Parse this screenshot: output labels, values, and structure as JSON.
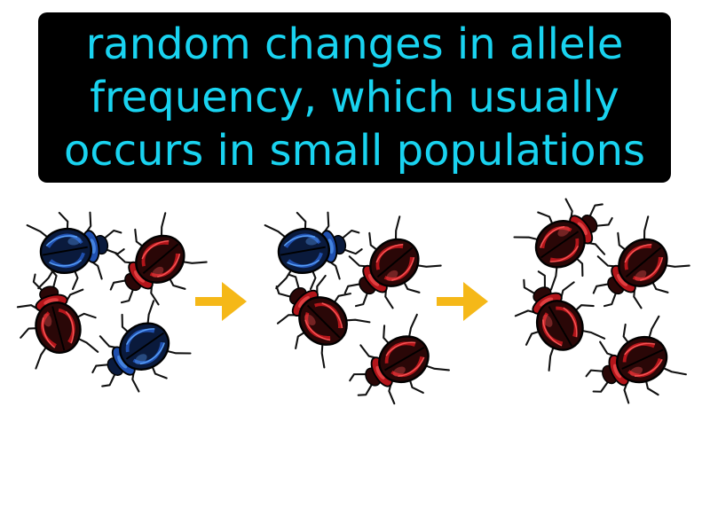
{
  "caption": {
    "lines": [
      "random changes in allele",
      "frequency, which usually",
      "occurs in small populations"
    ],
    "text_color": "#19d3f0",
    "background_color": "#000000"
  },
  "diagram": {
    "stages": [
      {
        "name": "generation-1",
        "beetles": [
          "blue",
          "red",
          "red",
          "blue"
        ]
      },
      {
        "name": "generation-2",
        "beetles": [
          "blue",
          "red",
          "red",
          "red"
        ]
      },
      {
        "name": "generation-3",
        "beetles": [
          "red",
          "red",
          "red",
          "red"
        ]
      }
    ],
    "arrow_count": 2,
    "arrow_color": "#f5b818",
    "colors": {
      "blue": {
        "dark": "#0a1a3c",
        "shell": "#1f4fae",
        "highlight": "#5ea7ff"
      },
      "red": {
        "dark": "#2a0707",
        "shell": "#b3151a",
        "highlight": "#ff5a5a"
      }
    },
    "icons": [
      "beetle-icon",
      "arrow-right-icon"
    ]
  }
}
